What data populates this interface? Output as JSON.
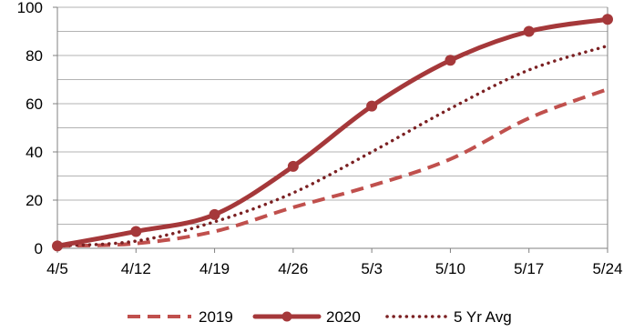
{
  "chart_data": {
    "type": "line",
    "categories": [
      "4/5",
      "4/12",
      "4/19",
      "4/26",
      "5/3",
      "5/10",
      "5/17",
      "5/24"
    ],
    "ylim": [
      0,
      100
    ],
    "yticks": [
      0,
      20,
      40,
      60,
      80,
      100
    ],
    "grid": true,
    "legend": "bottom",
    "series": [
      {
        "name": "2019",
        "style": "dashed",
        "color": "#c0504d",
        "values": [
          1,
          2,
          7,
          17,
          26,
          37,
          54,
          66
        ]
      },
      {
        "name": "2020",
        "style": "solid-markers",
        "color": "#a5383a",
        "values": [
          1,
          7,
          14,
          34,
          59,
          78,
          90,
          95
        ]
      },
      {
        "name": "5 Yr Avg",
        "style": "dotted",
        "color": "#7b2022",
        "values": [
          1,
          3,
          11,
          23,
          40,
          58,
          74,
          84
        ]
      }
    ]
  }
}
